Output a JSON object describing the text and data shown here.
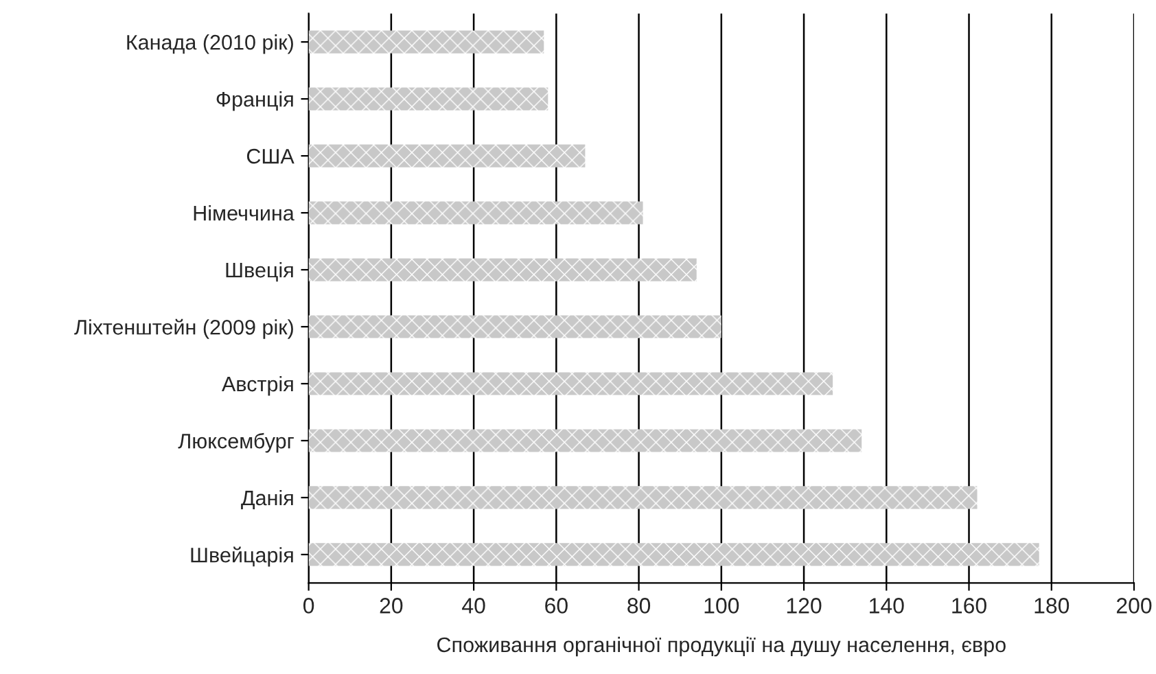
{
  "chart_data": {
    "type": "bar",
    "orientation": "horizontal",
    "xlabel": "Споживання органічної продукції на душу населення, євро",
    "categories": [
      "Канада (2010 рік)",
      "Франція",
      "США",
      "Німеччина",
      "Швеція",
      "Ліхтенштейн (2009 рік)",
      "Австрія",
      "Люксембург",
      "Данія",
      "Швейцарія"
    ],
    "values": [
      57,
      58,
      67,
      81,
      94,
      100,
      127,
      134,
      162,
      177
    ],
    "color": "#c8c8c8",
    "xlim": [
      0,
      200
    ],
    "xticks": [
      0,
      20,
      40,
      60,
      80,
      100,
      120,
      140,
      160,
      180,
      200
    ],
    "grid": "x",
    "legend": false
  }
}
